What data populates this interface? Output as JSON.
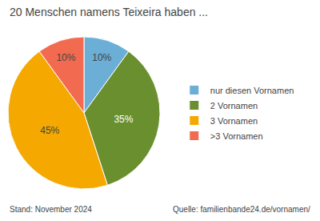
{
  "chart_data": {
    "type": "pie",
    "title": "20 Menschen namens Teixeira haben ...",
    "categories": [
      "nur diesen Vornamen",
      "2 Vornamen",
      "3 Vornamen",
      ">3 Vornamen"
    ],
    "values": [
      10,
      35,
      45,
      10
    ],
    "value_labels": [
      "10%",
      "35%",
      "45%",
      "10%"
    ],
    "colors": [
      "#6baed6",
      "#6a8f2e",
      "#f5a800",
      "#f26b50"
    ],
    "data_labels": true,
    "legend": "right",
    "annotations": [
      "Stand: November 2024",
      "Quelle: familienbande24.de/vornamen/"
    ]
  }
}
